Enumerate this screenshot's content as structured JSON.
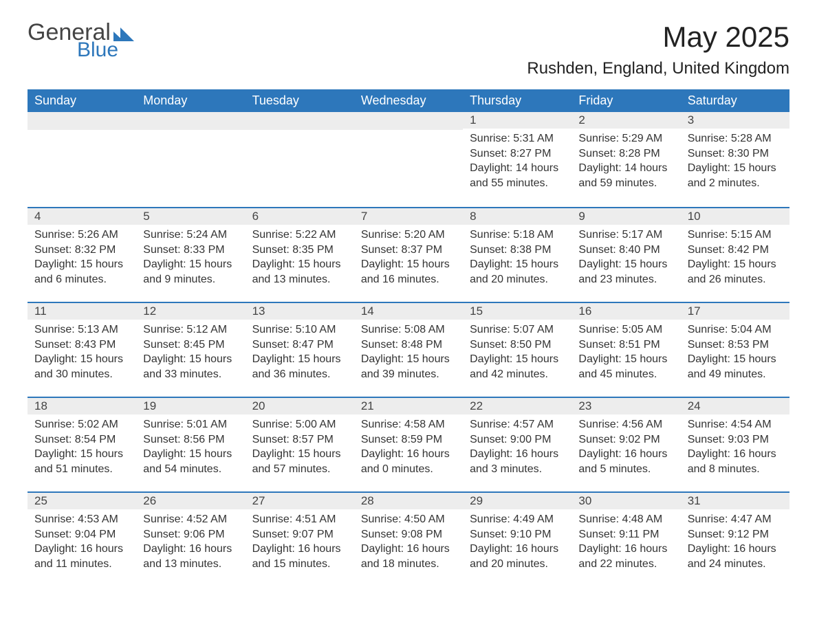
{
  "logo": {
    "text1": "General",
    "text2": "Blue"
  },
  "title": "May 2025",
  "location": "Rushden, England, United Kingdom",
  "colors": {
    "header_bg": "#2d77bb",
    "header_text": "#ffffff",
    "daynum_bg": "#ededed",
    "border_top": "#2d77bb",
    "body_text": "#333333",
    "logo_blue": "#2d77bb"
  },
  "weekdays": [
    "Sunday",
    "Monday",
    "Tuesday",
    "Wednesday",
    "Thursday",
    "Friday",
    "Saturday"
  ],
  "layout": {
    "first_weekday_index": 4,
    "days_in_month": 31,
    "columns": 7
  },
  "days": [
    {
      "n": "1",
      "sunrise": "5:31 AM",
      "sunset": "8:27 PM",
      "daylight": "14 hours and 55 minutes."
    },
    {
      "n": "2",
      "sunrise": "5:29 AM",
      "sunset": "8:28 PM",
      "daylight": "14 hours and 59 minutes."
    },
    {
      "n": "3",
      "sunrise": "5:28 AM",
      "sunset": "8:30 PM",
      "daylight": "15 hours and 2 minutes."
    },
    {
      "n": "4",
      "sunrise": "5:26 AM",
      "sunset": "8:32 PM",
      "daylight": "15 hours and 6 minutes."
    },
    {
      "n": "5",
      "sunrise": "5:24 AM",
      "sunset": "8:33 PM",
      "daylight": "15 hours and 9 minutes."
    },
    {
      "n": "6",
      "sunrise": "5:22 AM",
      "sunset": "8:35 PM",
      "daylight": "15 hours and 13 minutes."
    },
    {
      "n": "7",
      "sunrise": "5:20 AM",
      "sunset": "8:37 PM",
      "daylight": "15 hours and 16 minutes."
    },
    {
      "n": "8",
      "sunrise": "5:18 AM",
      "sunset": "8:38 PM",
      "daylight": "15 hours and 20 minutes."
    },
    {
      "n": "9",
      "sunrise": "5:17 AM",
      "sunset": "8:40 PM",
      "daylight": "15 hours and 23 minutes."
    },
    {
      "n": "10",
      "sunrise": "5:15 AM",
      "sunset": "8:42 PM",
      "daylight": "15 hours and 26 minutes."
    },
    {
      "n": "11",
      "sunrise": "5:13 AM",
      "sunset": "8:43 PM",
      "daylight": "15 hours and 30 minutes."
    },
    {
      "n": "12",
      "sunrise": "5:12 AM",
      "sunset": "8:45 PM",
      "daylight": "15 hours and 33 minutes."
    },
    {
      "n": "13",
      "sunrise": "5:10 AM",
      "sunset": "8:47 PM",
      "daylight": "15 hours and 36 minutes."
    },
    {
      "n": "14",
      "sunrise": "5:08 AM",
      "sunset": "8:48 PM",
      "daylight": "15 hours and 39 minutes."
    },
    {
      "n": "15",
      "sunrise": "5:07 AM",
      "sunset": "8:50 PM",
      "daylight": "15 hours and 42 minutes."
    },
    {
      "n": "16",
      "sunrise": "5:05 AM",
      "sunset": "8:51 PM",
      "daylight": "15 hours and 45 minutes."
    },
    {
      "n": "17",
      "sunrise": "5:04 AM",
      "sunset": "8:53 PM",
      "daylight": "15 hours and 49 minutes."
    },
    {
      "n": "18",
      "sunrise": "5:02 AM",
      "sunset": "8:54 PM",
      "daylight": "15 hours and 51 minutes."
    },
    {
      "n": "19",
      "sunrise": "5:01 AM",
      "sunset": "8:56 PM",
      "daylight": "15 hours and 54 minutes."
    },
    {
      "n": "20",
      "sunrise": "5:00 AM",
      "sunset": "8:57 PM",
      "daylight": "15 hours and 57 minutes."
    },
    {
      "n": "21",
      "sunrise": "4:58 AM",
      "sunset": "8:59 PM",
      "daylight": "16 hours and 0 minutes."
    },
    {
      "n": "22",
      "sunrise": "4:57 AM",
      "sunset": "9:00 PM",
      "daylight": "16 hours and 3 minutes."
    },
    {
      "n": "23",
      "sunrise": "4:56 AM",
      "sunset": "9:02 PM",
      "daylight": "16 hours and 5 minutes."
    },
    {
      "n": "24",
      "sunrise": "4:54 AM",
      "sunset": "9:03 PM",
      "daylight": "16 hours and 8 minutes."
    },
    {
      "n": "25",
      "sunrise": "4:53 AM",
      "sunset": "9:04 PM",
      "daylight": "16 hours and 11 minutes."
    },
    {
      "n": "26",
      "sunrise": "4:52 AM",
      "sunset": "9:06 PM",
      "daylight": "16 hours and 13 minutes."
    },
    {
      "n": "27",
      "sunrise": "4:51 AM",
      "sunset": "9:07 PM",
      "daylight": "16 hours and 15 minutes."
    },
    {
      "n": "28",
      "sunrise": "4:50 AM",
      "sunset": "9:08 PM",
      "daylight": "16 hours and 18 minutes."
    },
    {
      "n": "29",
      "sunrise": "4:49 AM",
      "sunset": "9:10 PM",
      "daylight": "16 hours and 20 minutes."
    },
    {
      "n": "30",
      "sunrise": "4:48 AM",
      "sunset": "9:11 PM",
      "daylight": "16 hours and 22 minutes."
    },
    {
      "n": "31",
      "sunrise": "4:47 AM",
      "sunset": "9:12 PM",
      "daylight": "16 hours and 24 minutes."
    }
  ],
  "labels": {
    "sunrise": "Sunrise:",
    "sunset": "Sunset:",
    "daylight": "Daylight:"
  }
}
